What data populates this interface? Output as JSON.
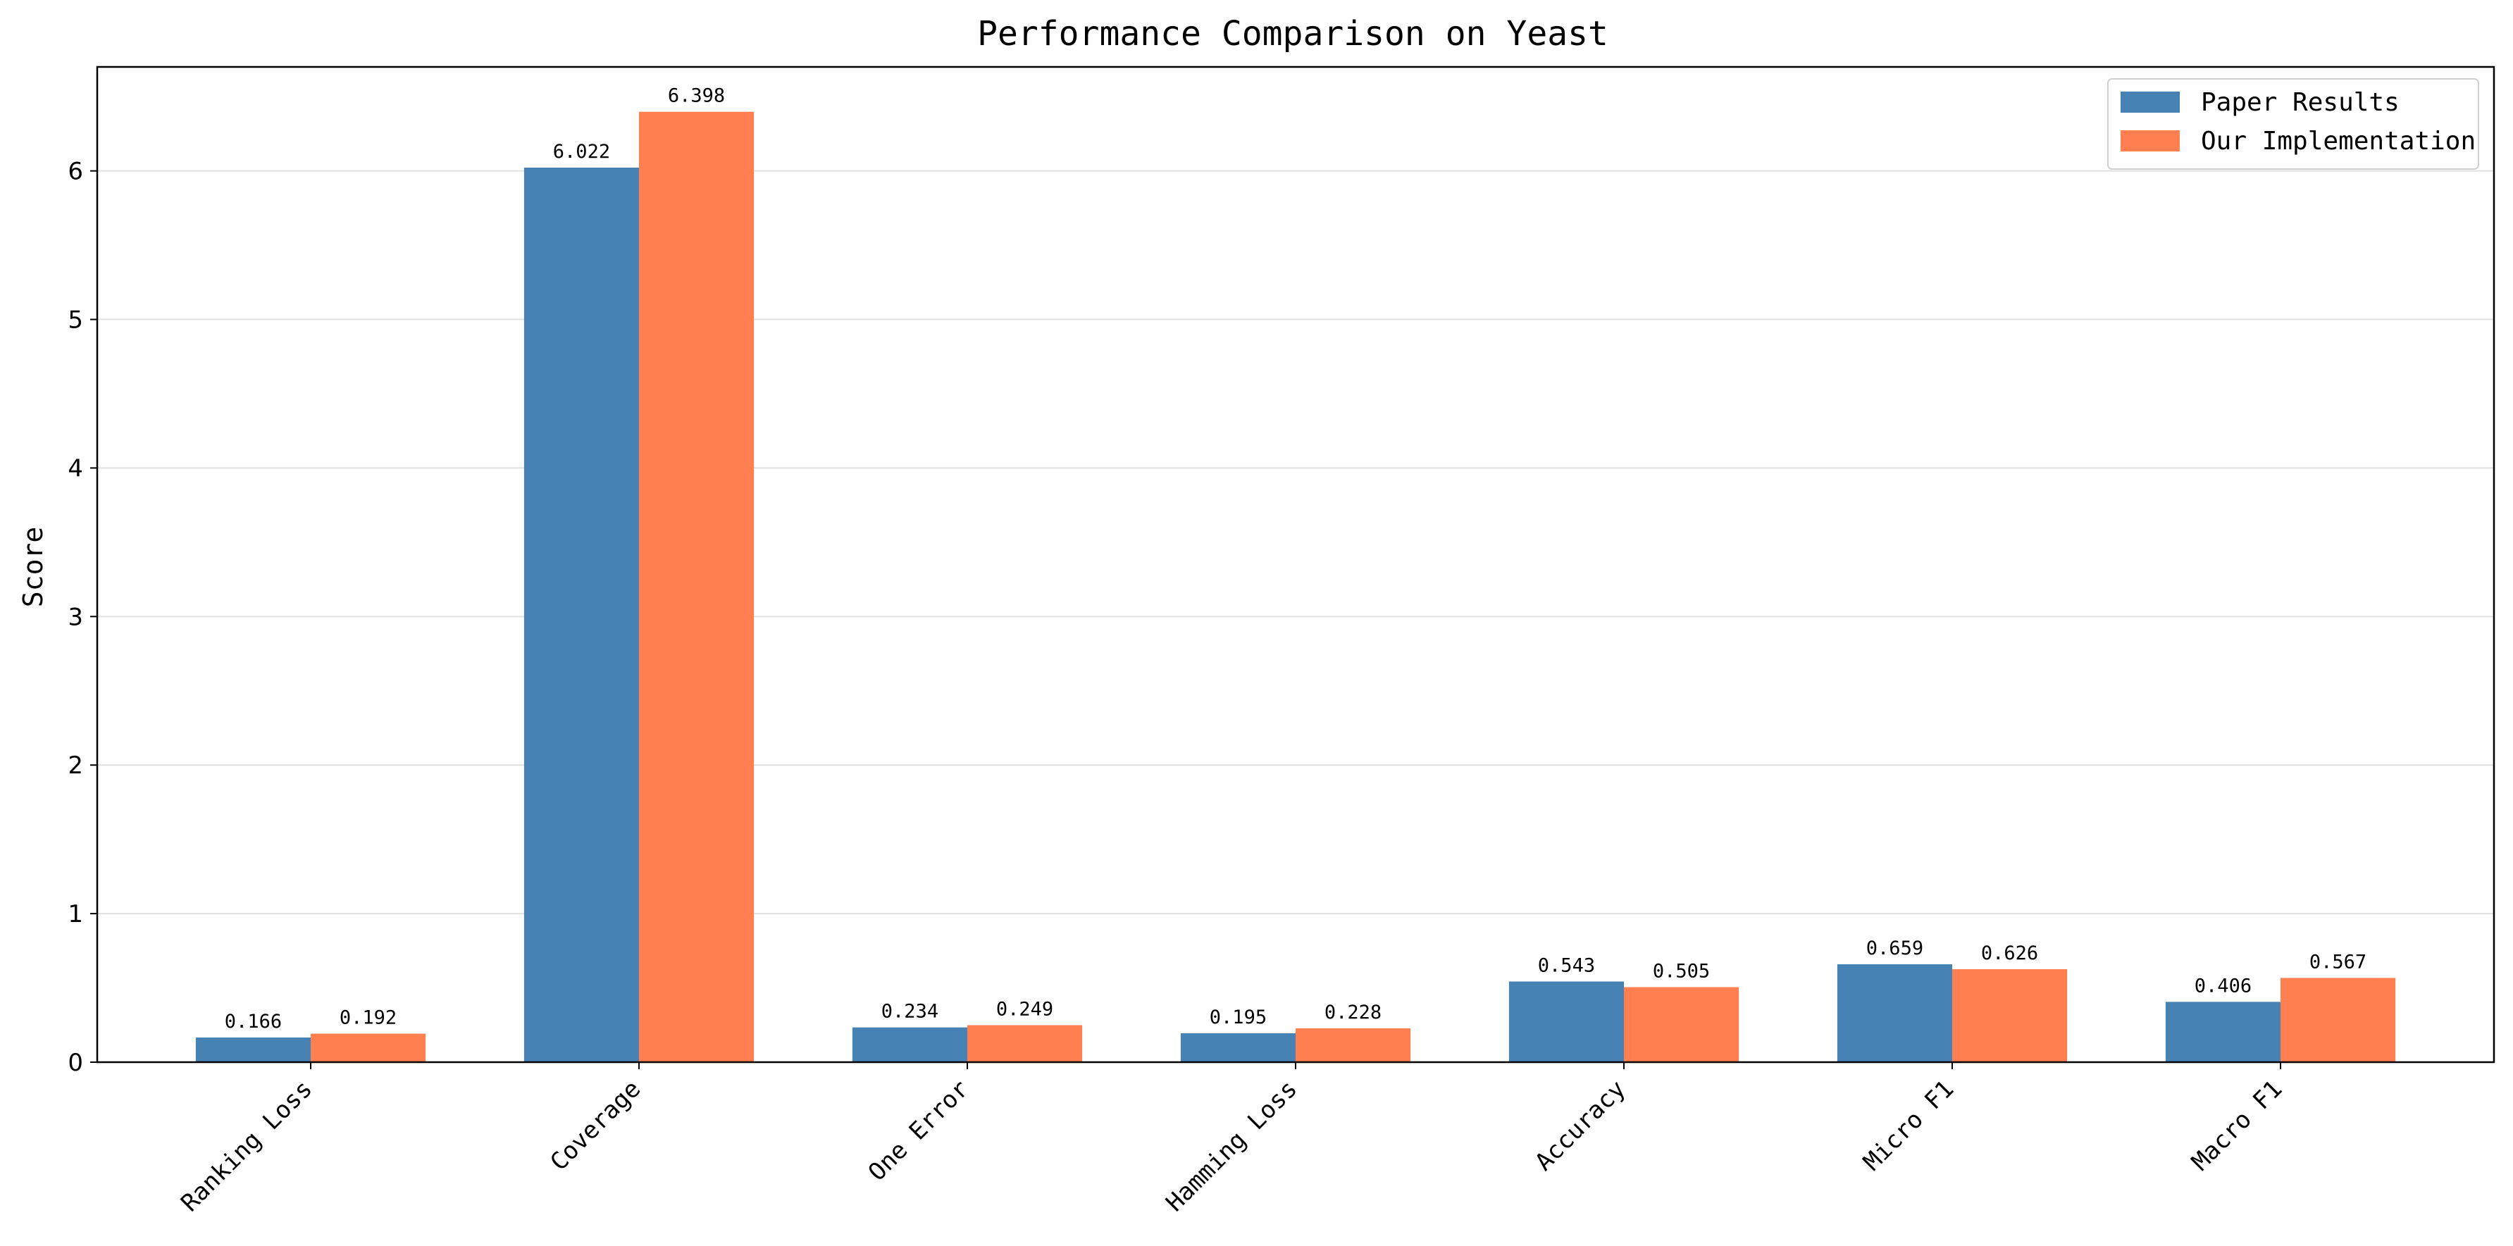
{
  "chart_data": {
    "type": "bar",
    "title": "Performance Comparison on Yeast",
    "xlabel": "",
    "ylabel": "Score",
    "ylim": [
      0,
      6.7
    ],
    "yticks": [
      0,
      1,
      2,
      3,
      4,
      5,
      6
    ],
    "grid": "horizontal",
    "legend_position": "top-right",
    "categories": [
      "Ranking Loss",
      "Coverage",
      "One Error",
      "Hamming Loss",
      "Accuracy",
      "Micro F1",
      "Macro F1"
    ],
    "series": [
      {
        "name": "Paper Results",
        "color": "#4682b4",
        "values": [
          0.166,
          6.022,
          0.234,
          0.195,
          0.543,
          0.659,
          0.406
        ]
      },
      {
        "name": "Our Implementation",
        "color": "#ff7f50",
        "values": [
          0.192,
          6.398,
          0.249,
          0.228,
          0.505,
          0.626,
          0.567
        ]
      }
    ],
    "data_labels": [
      [
        "0.166",
        "6.022",
        "0.234",
        "0.195",
        "0.543",
        "0.659",
        "0.406"
      ],
      [
        "0.192",
        "6.398",
        "0.249",
        "0.228",
        "0.505",
        "0.626",
        "0.567"
      ]
    ]
  }
}
